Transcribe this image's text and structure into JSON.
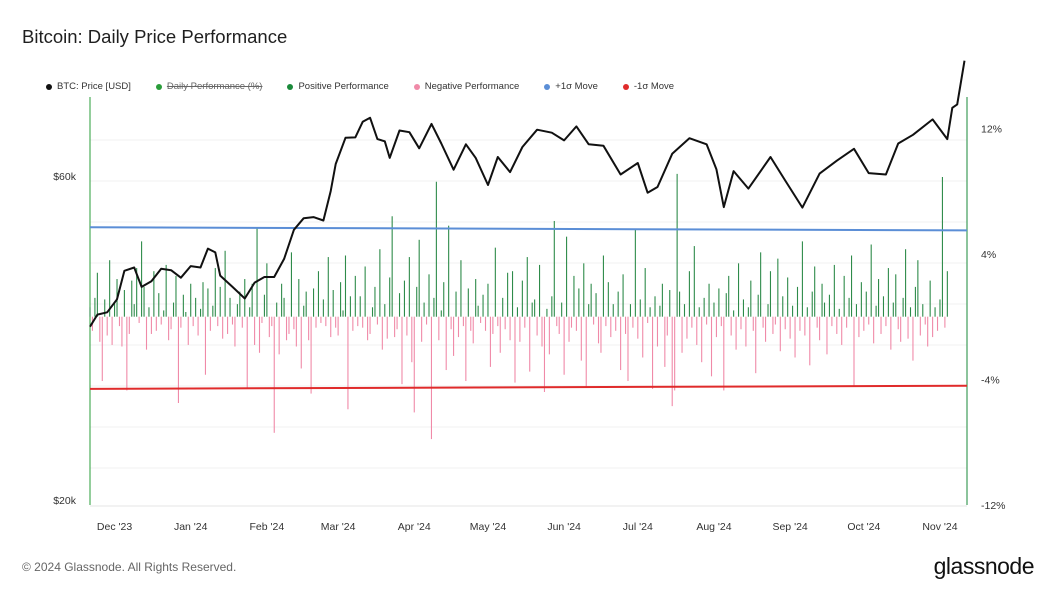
{
  "title": "Bitcoin: Daily Price Performance",
  "legend": [
    {
      "label": "BTC: Price [USD]",
      "color": "#111111",
      "enabled": true
    },
    {
      "label": "Daily Performance (%)",
      "color": "#2a9d3a",
      "enabled": false
    },
    {
      "label": "Positive Performance",
      "color": "#1a8a3a",
      "enabled": true
    },
    {
      "label": "Negative Performance",
      "color": "#f08aa8",
      "enabled": true
    },
    {
      "label": "+1σ Move",
      "color": "#5b8ed6",
      "enabled": true
    },
    {
      "label": "-1σ Move",
      "color": "#e02b2b",
      "enabled": true
    }
  ],
  "footer": {
    "copyright": "© 2024 Glassnode. All Rights Reserved.",
    "brand": "glassnode"
  },
  "chart_data": {
    "type": "line",
    "title": "Bitcoin: Daily Price Performance",
    "x_axis": {
      "type": "date",
      "range": [
        "2023-11-21",
        "2024-11-12"
      ],
      "ticks": [
        {
          "date": "2023-12-01",
          "label": "Dec '23"
        },
        {
          "date": "2024-01-01",
          "label": "Jan '24"
        },
        {
          "date": "2024-02-01",
          "label": "Feb '24"
        },
        {
          "date": "2024-03-01",
          "label": "Mar '24"
        },
        {
          "date": "2024-04-01",
          "label": "Apr '24"
        },
        {
          "date": "2024-05-01",
          "label": "May '24"
        },
        {
          "date": "2024-06-01",
          "label": "Jun '24"
        },
        {
          "date": "2024-07-01",
          "label": "Jul '24"
        },
        {
          "date": "2024-08-01",
          "label": "Aug '24"
        },
        {
          "date": "2024-09-01",
          "label": "Sep '24"
        },
        {
          "date": "2024-10-01",
          "label": "Oct '24"
        },
        {
          "date": "2024-11-01",
          "label": "Nov '24"
        }
      ]
    },
    "y_left": {
      "scale": "log",
      "unit": "USD",
      "ticks": [
        {
          "value": 20000,
          "label": "$20k"
        },
        {
          "value": 60000,
          "label": "$60k"
        }
      ]
    },
    "y_right": {
      "scale": "linear",
      "unit": "%",
      "range": [
        -12,
        14
      ],
      "ticks": [
        {
          "value": 12,
          "label": "12%"
        },
        {
          "value": 4,
          "label": "4%"
        },
        {
          "value": -4,
          "label": "-4%"
        },
        {
          "value": -12,
          "label": "-12%"
        }
      ]
    },
    "sigma_lines": {
      "plus": {
        "start": 5.7,
        "end": 5.5
      },
      "minus": {
        "start": -4.6,
        "end": -4.4
      }
    },
    "price_series": {
      "name": "BTC: Price [USD]",
      "points": [
        [
          "2023-11-21",
          36000
        ],
        [
          "2023-11-24",
          37500
        ],
        [
          "2023-11-28",
          37800
        ],
        [
          "2023-12-02",
          39500
        ],
        [
          "2023-12-05",
          43500
        ],
        [
          "2023-12-09",
          44000
        ],
        [
          "2023-12-12",
          41200
        ],
        [
          "2023-12-16",
          42000
        ],
        [
          "2023-12-20",
          43800
        ],
        [
          "2023-12-24",
          43600
        ],
        [
          "2023-12-28",
          42500
        ],
        [
          "2024-01-01",
          44200
        ],
        [
          "2024-01-05",
          44000
        ],
        [
          "2024-01-08",
          46900
        ],
        [
          "2024-01-11",
          46300
        ],
        [
          "2024-01-13",
          42800
        ],
        [
          "2024-01-18",
          41200
        ],
        [
          "2024-01-23",
          39600
        ],
        [
          "2024-01-27",
          41800
        ],
        [
          "2024-01-31",
          42600
        ],
        [
          "2024-02-04",
          42600
        ],
        [
          "2024-02-08",
          45300
        ],
        [
          "2024-02-12",
          50000
        ],
        [
          "2024-02-16",
          52000
        ],
        [
          "2024-02-20",
          52200
        ],
        [
          "2024-02-24",
          51600
        ],
        [
          "2024-02-27",
          57000
        ],
        [
          "2024-02-29",
          62500
        ],
        [
          "2024-03-04",
          68300
        ],
        [
          "2024-03-08",
          68400
        ],
        [
          "2024-03-11",
          72100
        ],
        [
          "2024-03-14",
          73100
        ],
        [
          "2024-03-17",
          68000
        ],
        [
          "2024-03-20",
          67500
        ],
        [
          "2024-03-22",
          63800
        ],
        [
          "2024-03-26",
          70000
        ],
        [
          "2024-03-30",
          69600
        ],
        [
          "2024-04-03",
          65900
        ],
        [
          "2024-04-08",
          71600
        ],
        [
          "2024-04-12",
          67000
        ],
        [
          "2024-04-17",
          61300
        ],
        [
          "2024-04-22",
          66800
        ],
        [
          "2024-04-26",
          63800
        ],
        [
          "2024-05-01",
          58200
        ],
        [
          "2024-05-05",
          64000
        ],
        [
          "2024-05-10",
          60800
        ],
        [
          "2024-05-15",
          66200
        ],
        [
          "2024-05-21",
          70200
        ],
        [
          "2024-05-27",
          69500
        ],
        [
          "2024-06-01",
          67700
        ],
        [
          "2024-06-06",
          71000
        ],
        [
          "2024-06-11",
          66800
        ],
        [
          "2024-06-17",
          66500
        ],
        [
          "2024-06-24",
          60300
        ],
        [
          "2024-07-01",
          62700
        ],
        [
          "2024-07-05",
          56700
        ],
        [
          "2024-07-09",
          57800
        ],
        [
          "2024-07-15",
          64700
        ],
        [
          "2024-07-22",
          68200
        ],
        [
          "2024-07-29",
          66800
        ],
        [
          "2024-08-02",
          61400
        ],
        [
          "2024-08-05",
          54000
        ],
        [
          "2024-08-09",
          61000
        ],
        [
          "2024-08-15",
          57500
        ],
        [
          "2024-08-24",
          64000
        ],
        [
          "2024-08-30",
          59100
        ],
        [
          "2024-09-06",
          53900
        ],
        [
          "2024-09-13",
          60500
        ],
        [
          "2024-09-20",
          63200
        ],
        [
          "2024-09-27",
          65800
        ],
        [
          "2024-10-03",
          60600
        ],
        [
          "2024-10-10",
          60300
        ],
        [
          "2024-10-15",
          67000
        ],
        [
          "2024-10-21",
          69000
        ],
        [
          "2024-10-29",
          72700
        ],
        [
          "2024-11-04",
          68000
        ],
        [
          "2024-11-06",
          75600
        ],
        [
          "2024-11-08",
          76500
        ],
        [
          "2024-11-11",
          88700
        ]
      ]
    },
    "performance_series": {
      "name": "Daily Performance (%)",
      "unit": "%",
      "start_date": "2023-11-21",
      "values": [
        0.6,
        -0.9,
        1.2,
        2.8,
        -1.6,
        -4.1,
        1.1,
        -1.2,
        3.6,
        -1.8,
        0.9,
        2.4,
        -0.6,
        -1.9,
        1.7,
        -4.7,
        -1.1,
        2.3,
        0.8,
        3.1,
        -0.4,
        4.8,
        1.9,
        -2.1,
        0.6,
        -1.1,
        2.9,
        -0.9,
        1.5,
        -0.5,
        0.4,
        3.3,
        -1.5,
        -0.8,
        0.9,
        2.6,
        -5.5,
        -0.7,
        1.4,
        0.3,
        -1.8,
        2.1,
        -0.6,
        1.2,
        -1.2,
        0.5,
        2.2,
        -3.7,
        1.8,
        -0.9,
        0.7,
        3.1,
        -0.6,
        1.9,
        -1.4,
        4.2,
        -1.1,
        1.2,
        -0.5,
        -1.9,
        0.8,
        1.6,
        -0.7,
        2.4,
        -4.6,
        0.6,
        2.1,
        -1.8,
        5.7,
        -2.3,
        -0.4,
        1.4,
        3.4,
        -1.3,
        -0.6,
        -7.4,
        0.9,
        -2.4,
        2.1,
        1.2,
        -1.5,
        -1.1,
        4.1,
        -0.8,
        -1.9,
        2.4,
        -3.3,
        0.7,
        1.6,
        -1.5,
        -4.9,
        1.8,
        -0.7,
        2.9,
        -0.4,
        1.1,
        -0.6,
        3.8,
        -1.3,
        1.7,
        -0.7,
        -1.2,
        2.2,
        0.4,
        3.9,
        -5.9,
        1.3,
        -0.9,
        2.6,
        -0.6,
        1.3,
        -0.7,
        3.2,
        -1.5,
        -1.1,
        0.6,
        1.9,
        -0.5,
        4.3,
        -2.1,
        0.8,
        -1.4,
        2.5,
        6.4,
        -1.3,
        -0.8,
        1.5,
        -4.3,
        2.3,
        -1.2,
        3.8,
        -2.9,
        -6.1,
        1.9,
        4.9,
        -1.6,
        0.9,
        -0.5,
        2.7,
        -7.8,
        1.2,
        8.6,
        -1.5,
        0.4,
        2.2,
        -3.4,
        5.8,
        -0.8,
        -2.5,
        1.6,
        -1.3,
        3.6,
        -0.6,
        -4.1,
        1.8,
        -0.9,
        -1.7,
        2.4,
        0.7,
        -0.4,
        1.4,
        -0.9,
        2.1,
        -3.2,
        -1.1,
        4.4,
        -0.6,
        -2.3,
        1.2,
        -0.8,
        2.8,
        -1.5,
        2.9,
        -4.2,
        0.6,
        -1.6,
        2.3,
        -0.7,
        3.8,
        -3.5,
        0.9,
        1.1,
        -1.2,
        3.3,
        -1.9,
        -4.8,
        0.5,
        -2.4,
        1.3,
        6.1,
        -0.6,
        -1.1,
        0.9,
        -3.7,
        5.1,
        -1.6,
        -0.7,
        2.6,
        -0.9,
        1.8,
        -2.8,
        3.4,
        -4.5,
        0.8,
        2.1,
        -0.5,
        1.5,
        -1.7,
        -2.3,
        3.9,
        -0.6,
        2.2,
        -1.3,
        0.8,
        -0.9,
        1.6,
        -3.4,
        2.7,
        -1.1,
        -4.1,
        0.8,
        -0.7,
        5.6,
        -1.4,
        1.1,
        -2.6,
        3.1,
        -0.4,
        0.6,
        -4.6,
        1.3,
        -1.9,
        0.7,
        2.1,
        -3.2,
        -1.2,
        1.7,
        -5.7,
        -4.7,
        9.1,
        1.6,
        -2.3,
        0.8,
        -1.4,
        2.9,
        -0.7,
        4.5,
        -1.8,
        0.6,
        -2.9,
        1.2,
        -0.5,
        2.1,
        -3.8,
        0.9,
        -1.3,
        1.8,
        -0.6,
        -4.7,
        1.5,
        2.6,
        -1.2,
        0.4,
        -2.1,
        3.4,
        -0.8,
        1.1,
        -1.9,
        0.6,
        2.3,
        -0.9,
        -3.6,
        1.4,
        4.1,
        -0.7,
        -1.6,
        0.8,
        2.9,
        -1.1,
        -0.5,
        3.7,
        -2.2,
        1.3,
        -0.8,
        2.5,
        -1.4,
        0.7,
        -2.6,
        1.9,
        -0.9,
        4.8,
        -1.2,
        0.6,
        -3.1,
        1.6,
        3.2,
        -0.7,
        -1.5,
        2.1,
        0.9,
        -2.4,
        1.4,
        -0.6,
        3.3,
        -1.1,
        0.5,
        -1.8,
        2.6,
        -0.7,
        1.2,
        3.9,
        -4.4,
        0.8,
        -1.3,
        2.2,
        -0.9,
        1.6,
        -0.5,
        4.6,
        -1.7,
        0.7,
        2.4,
        -1.1,
        1.3,
        -0.6,
        3.1,
        -2.1,
        0.9,
        2.7,
        -0.8,
        -1.6,
        1.2,
        4.3,
        -1.4,
        0.6,
        -2.8,
        1.9,
        3.6,
        -1.2,
        0.8,
        -0.5,
        -1.9,
        2.3,
        -1.3,
        0.6,
        -0.9,
        1.1,
        8.9,
        -0.7,
        2.9
      ]
    }
  }
}
